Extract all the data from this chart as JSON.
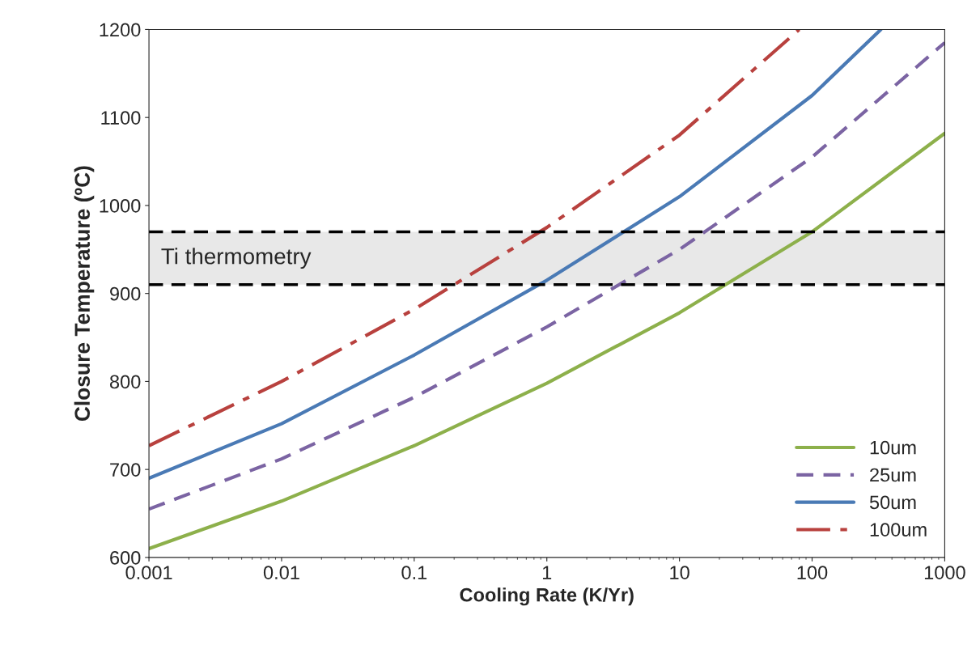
{
  "chart_data": {
    "type": "line",
    "xlabel": "Cooling Rate (K/Yr)",
    "ylabel": "Closure Temperature (ºC)",
    "log": "x",
    "xlim": [
      0.001,
      1000
    ],
    "xticks": [
      0.001,
      0.01,
      0.1,
      1,
      10,
      100,
      1000
    ],
    "ylim": [
      600,
      1200
    ],
    "yticks": [
      600,
      700,
      800,
      900,
      1000,
      1100,
      1200
    ],
    "grid": false,
    "legend": "bottom right",
    "series": [
      {
        "name": "10um",
        "color": "#8db04b",
        "line_style": "solid",
        "x": [
          0.001,
          0.01,
          0.1,
          1,
          10,
          100,
          1000
        ],
        "values": [
          610,
          664,
          727,
          798,
          878,
          970,
          1082
        ]
      },
      {
        "name": "25um",
        "color": "#7b64a3",
        "line_style": "dashed",
        "x": [
          0.001,
          0.01,
          0.1,
          1,
          10,
          100,
          1000
        ],
        "values": [
          655,
          712,
          782,
          862,
          950,
          1055,
          1185
        ]
      },
      {
        "name": "50um",
        "color": "#4a7ab5",
        "line_style": "solid",
        "x": [
          0.001,
          0.01,
          0.1,
          1,
          10,
          100,
          330
        ],
        "values": [
          690,
          752,
          830,
          915,
          1010,
          1125,
          1200
        ]
      },
      {
        "name": "100um",
        "color": "#b8413e",
        "line_style": "dashdot",
        "x": [
          0.001,
          0.01,
          0.1,
          1,
          10,
          80
        ],
        "values": [
          727,
          800,
          882,
          975,
          1080,
          1200
        ]
      }
    ],
    "bands": [
      {
        "axis": "y",
        "from": 910,
        "to": 970,
        "label": "Ti thermometry",
        "color": "#d9d9d9"
      }
    ],
    "ref_lines": [
      {
        "axis": "y",
        "value": 910,
        "color": "#000000",
        "line_style": "dashed"
      },
      {
        "axis": "y",
        "value": 970,
        "color": "#000000",
        "line_style": "dashed"
      }
    ]
  }
}
